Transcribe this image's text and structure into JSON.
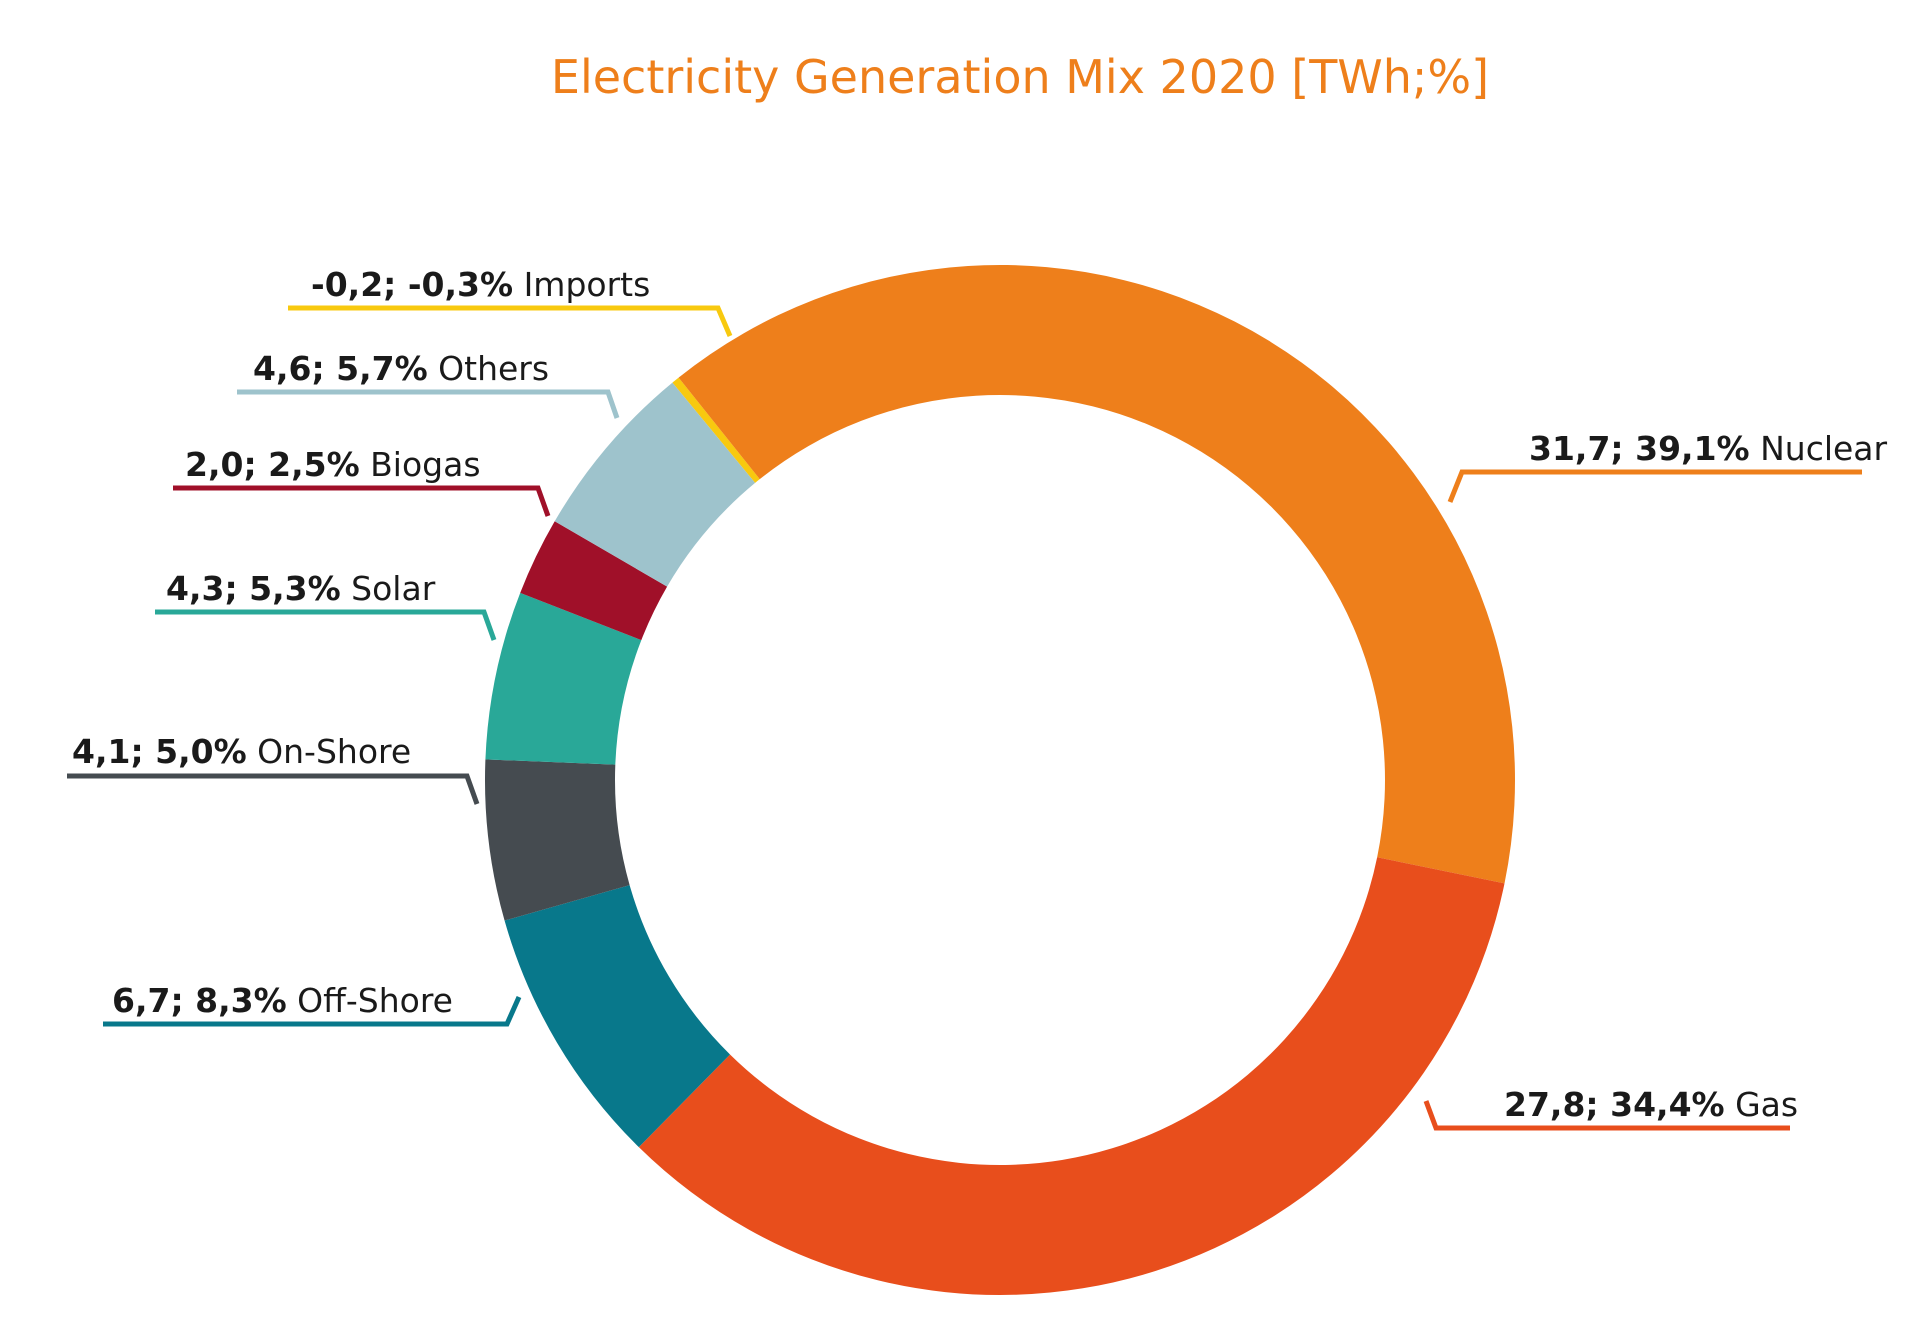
{
  "chart_data": {
    "type": "pie",
    "title": "Electricity Generation Mix 2020 [TWh;%]",
    "donut": true,
    "slices": [
      {
        "key": "nuclear",
        "name": "Nuclear",
        "value": 31.7,
        "percent": 39.1,
        "value_label": "31,7; 39,1%",
        "color": "#EE7F1B"
      },
      {
        "key": "gas",
        "name": "Gas",
        "value": 27.8,
        "percent": 34.4,
        "value_label": "27,8; 34,4%",
        "color": "#E84E1C"
      },
      {
        "key": "offshore",
        "name": "Off-Shore",
        "value": 6.7,
        "percent": 8.3,
        "value_label": "6,7; 8,3%",
        "color": "#08788B"
      },
      {
        "key": "onshore",
        "name": "On-Shore",
        "value": 4.1,
        "percent": 5.0,
        "value_label": "4,1; 5,0%",
        "color": "#454B50"
      },
      {
        "key": "solar",
        "name": "Solar",
        "value": 4.3,
        "percent": 5.3,
        "value_label": "4,3; 5,3%",
        "color": "#29A898"
      },
      {
        "key": "biogas",
        "name": "Biogas",
        "value": 2.0,
        "percent": 2.5,
        "value_label": "2,0; 2,5%",
        "color": "#A01029"
      },
      {
        "key": "others",
        "name": "Others",
        "value": 4.6,
        "percent": 5.7,
        "value_label": "4,6; 5,7%",
        "color": "#9EC3CC"
      },
      {
        "key": "imports",
        "name": "Imports",
        "value": -0.2,
        "percent": -0.3,
        "value_label": "-0,2; -0,3%",
        "color": "#F8C90F"
      }
    ]
  }
}
